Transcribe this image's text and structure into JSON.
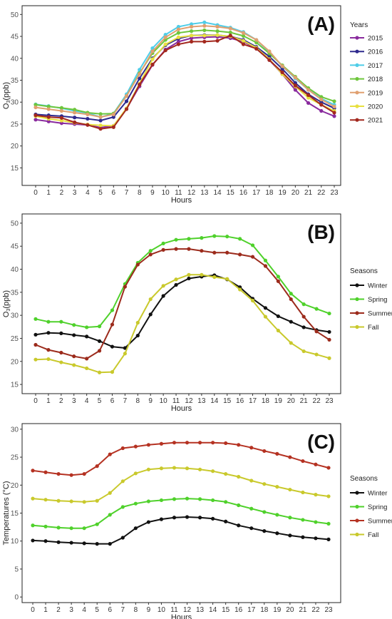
{
  "chart_data": [
    {
      "type": "line",
      "panel_label": "(A)",
      "xlabel": "Hours",
      "ylabel": "O3(ppb)",
      "x": [
        0,
        1,
        2,
        3,
        4,
        5,
        6,
        7,
        8,
        9,
        10,
        11,
        12,
        13,
        14,
        15,
        16,
        17,
        18,
        19,
        20,
        21,
        22,
        23
      ],
      "xlim": [
        0,
        23
      ],
      "ylim": [
        11,
        52
      ],
      "yticks": [
        15,
        20,
        25,
        30,
        35,
        40,
        45,
        50
      ],
      "grid": false,
      "legend_title": "Years",
      "legend_position": "right",
      "series": [
        {
          "name": "2015",
          "color": "#8a2b9e",
          "values": [
            26.0,
            25.6,
            25.2,
            25.0,
            24.8,
            24.2,
            24.6,
            28.5,
            33.6,
            38.5,
            42.0,
            43.8,
            44.6,
            44.8,
            44.9,
            44.6,
            43.8,
            42.2,
            39.6,
            36.4,
            32.8,
            29.8,
            28.0,
            26.8
          ]
        },
        {
          "name": "2016",
          "color": "#2e2a8e",
          "values": [
            27.2,
            27.0,
            26.8,
            26.5,
            26.2,
            25.8,
            26.6,
            30.2,
            35.4,
            40.0,
            43.0,
            44.5,
            45.2,
            45.3,
            45.3,
            45.0,
            44.2,
            42.6,
            40.4,
            37.6,
            34.4,
            31.8,
            30.0,
            28.6
          ]
        },
        {
          "name": "2017",
          "color": "#4fcde8",
          "values": [
            29.5,
            29.1,
            28.6,
            28.0,
            27.5,
            26.6,
            27.4,
            31.8,
            37.4,
            42.3,
            45.4,
            47.2,
            47.8,
            48.2,
            47.6,
            47.0,
            46.0,
            44.2,
            41.4,
            38.2,
            35.4,
            32.8,
            30.8,
            29.4
          ]
        },
        {
          "name": "2018",
          "color": "#6ec63c",
          "values": [
            29.4,
            29.0,
            28.7,
            28.3,
            27.6,
            27.3,
            27.4,
            31.4,
            36.6,
            41.2,
            44.2,
            45.8,
            46.2,
            46.4,
            46.2,
            45.9,
            45.1,
            43.6,
            41.1,
            38.4,
            35.8,
            33.2,
            31.2,
            30.2
          ]
        },
        {
          "name": "2019",
          "color": "#e0a070",
          "values": [
            28.8,
            28.4,
            28.0,
            27.6,
            27.2,
            26.6,
            27.2,
            31.4,
            36.4,
            41.6,
            44.8,
            46.6,
            47.2,
            47.4,
            47.2,
            46.8,
            45.8,
            44.2,
            41.6,
            38.2,
            35.6,
            32.8,
            30.6,
            29.0
          ]
        },
        {
          "name": "2020",
          "color": "#e8e040",
          "values": [
            26.8,
            26.2,
            25.8,
            25.3,
            24.9,
            24.7,
            24.6,
            28.6,
            34.2,
            39.8,
            43.2,
            44.8,
            45.2,
            45.2,
            45.3,
            45.0,
            44.0,
            42.4,
            39.8,
            36.4,
            33.6,
            31.0,
            29.4,
            28.0
          ]
        },
        {
          "name": "2021",
          "color": "#a3281e",
          "values": [
            27.0,
            26.6,
            26.4,
            25.4,
            24.8,
            23.9,
            24.3,
            28.4,
            34.0,
            38.6,
            41.8,
            43.2,
            43.8,
            43.8,
            44.0,
            45.2,
            43.2,
            42.2,
            39.6,
            36.8,
            33.8,
            31.6,
            29.4,
            27.6
          ]
        }
      ]
    },
    {
      "type": "line",
      "panel_label": "(B)",
      "xlabel": "Hours",
      "ylabel": "O3(ppb)",
      "x": [
        0,
        1,
        2,
        3,
        4,
        5,
        6,
        7,
        8,
        9,
        10,
        11,
        12,
        13,
        14,
        15,
        16,
        17,
        18,
        19,
        20,
        21,
        22,
        23
      ],
      "xlim": [
        0,
        23
      ],
      "ylim": [
        13,
        52
      ],
      "yticks": [
        15,
        20,
        25,
        30,
        35,
        40,
        45,
        50
      ],
      "grid": false,
      "legend_title": "Seasons",
      "legend_position": "right",
      "series": [
        {
          "name": "Winter",
          "color": "#111111",
          "values": [
            25.8,
            26.2,
            26.1,
            25.7,
            25.4,
            24.4,
            23.2,
            22.9,
            25.6,
            30.2,
            34.2,
            36.6,
            38.0,
            38.4,
            38.7,
            37.8,
            36.1,
            33.6,
            31.6,
            29.8,
            28.6,
            27.4,
            26.8,
            26.4
          ]
        },
        {
          "name": "Spring",
          "color": "#4fd12b",
          "values": [
            29.2,
            28.6,
            28.6,
            27.9,
            27.4,
            27.6,
            31.1,
            36.8,
            41.4,
            44.0,
            45.6,
            46.4,
            46.6,
            46.8,
            47.2,
            47.1,
            46.6,
            45.2,
            41.9,
            38.4,
            34.7,
            32.4,
            31.4,
            30.4
          ]
        },
        {
          "name": "Summer",
          "color": "#9c2b1c",
          "values": [
            23.6,
            22.5,
            21.9,
            21.1,
            20.6,
            22.3,
            28.0,
            36.2,
            41.0,
            43.2,
            44.2,
            44.4,
            44.4,
            44.0,
            43.6,
            43.6,
            43.2,
            42.7,
            40.7,
            37.4,
            33.5,
            29.7,
            26.5,
            24.7
          ]
        },
        {
          "name": "Fall",
          "color": "#c9c92c",
          "values": [
            20.4,
            20.5,
            19.8,
            19.2,
            18.5,
            17.6,
            17.7,
            21.7,
            28.4,
            33.5,
            36.4,
            37.8,
            38.8,
            38.8,
            38.3,
            37.9,
            35.6,
            33.2,
            29.7,
            26.7,
            24.0,
            22.2,
            21.5,
            20.7
          ]
        }
      ]
    },
    {
      "type": "line",
      "panel_label": "(C)",
      "xlabel": "Hours",
      "ylabel": "Temperatures (°C)",
      "x": [
        0,
        1,
        2,
        3,
        4,
        5,
        6,
        7,
        8,
        9,
        10,
        11,
        12,
        13,
        14,
        15,
        16,
        17,
        18,
        19,
        20,
        21,
        22,
        23
      ],
      "xlim": [
        0,
        23
      ],
      "ylim": [
        -1,
        31
      ],
      "yticks": [
        0,
        5,
        10,
        15,
        20,
        25,
        30
      ],
      "grid": false,
      "legend_title": "Seasons",
      "legend_position": "right",
      "series": [
        {
          "name": "Winter",
          "color": "#111111",
          "values": [
            10.1,
            10.0,
            9.8,
            9.7,
            9.6,
            9.5,
            9.5,
            10.6,
            12.3,
            13.4,
            13.9,
            14.2,
            14.3,
            14.2,
            14.0,
            13.5,
            12.8,
            12.3,
            11.8,
            11.4,
            11.0,
            10.7,
            10.5,
            10.3
          ]
        },
        {
          "name": "Spring",
          "color": "#4fd12b",
          "values": [
            12.8,
            12.6,
            12.4,
            12.3,
            12.3,
            13.0,
            14.7,
            16.1,
            16.7,
            17.1,
            17.3,
            17.5,
            17.6,
            17.5,
            17.3,
            17.0,
            16.4,
            15.8,
            15.2,
            14.7,
            14.2,
            13.8,
            13.4,
            13.1
          ]
        },
        {
          "name": "Summer",
          "color": "#b53222",
          "values": [
            22.6,
            22.3,
            22.0,
            21.8,
            22.0,
            23.4,
            25.5,
            26.6,
            26.9,
            27.2,
            27.4,
            27.6,
            27.6,
            27.6,
            27.6,
            27.5,
            27.2,
            26.7,
            26.1,
            25.6,
            25.0,
            24.3,
            23.7,
            23.1
          ]
        },
        {
          "name": "Fall",
          "color": "#c9c92c",
          "values": [
            17.6,
            17.4,
            17.2,
            17.1,
            17.0,
            17.2,
            18.6,
            20.7,
            22.1,
            22.8,
            23.0,
            23.1,
            23.0,
            22.8,
            22.5,
            22.0,
            21.5,
            20.8,
            20.2,
            19.7,
            19.2,
            18.7,
            18.3,
            18.0
          ]
        }
      ]
    }
  ]
}
